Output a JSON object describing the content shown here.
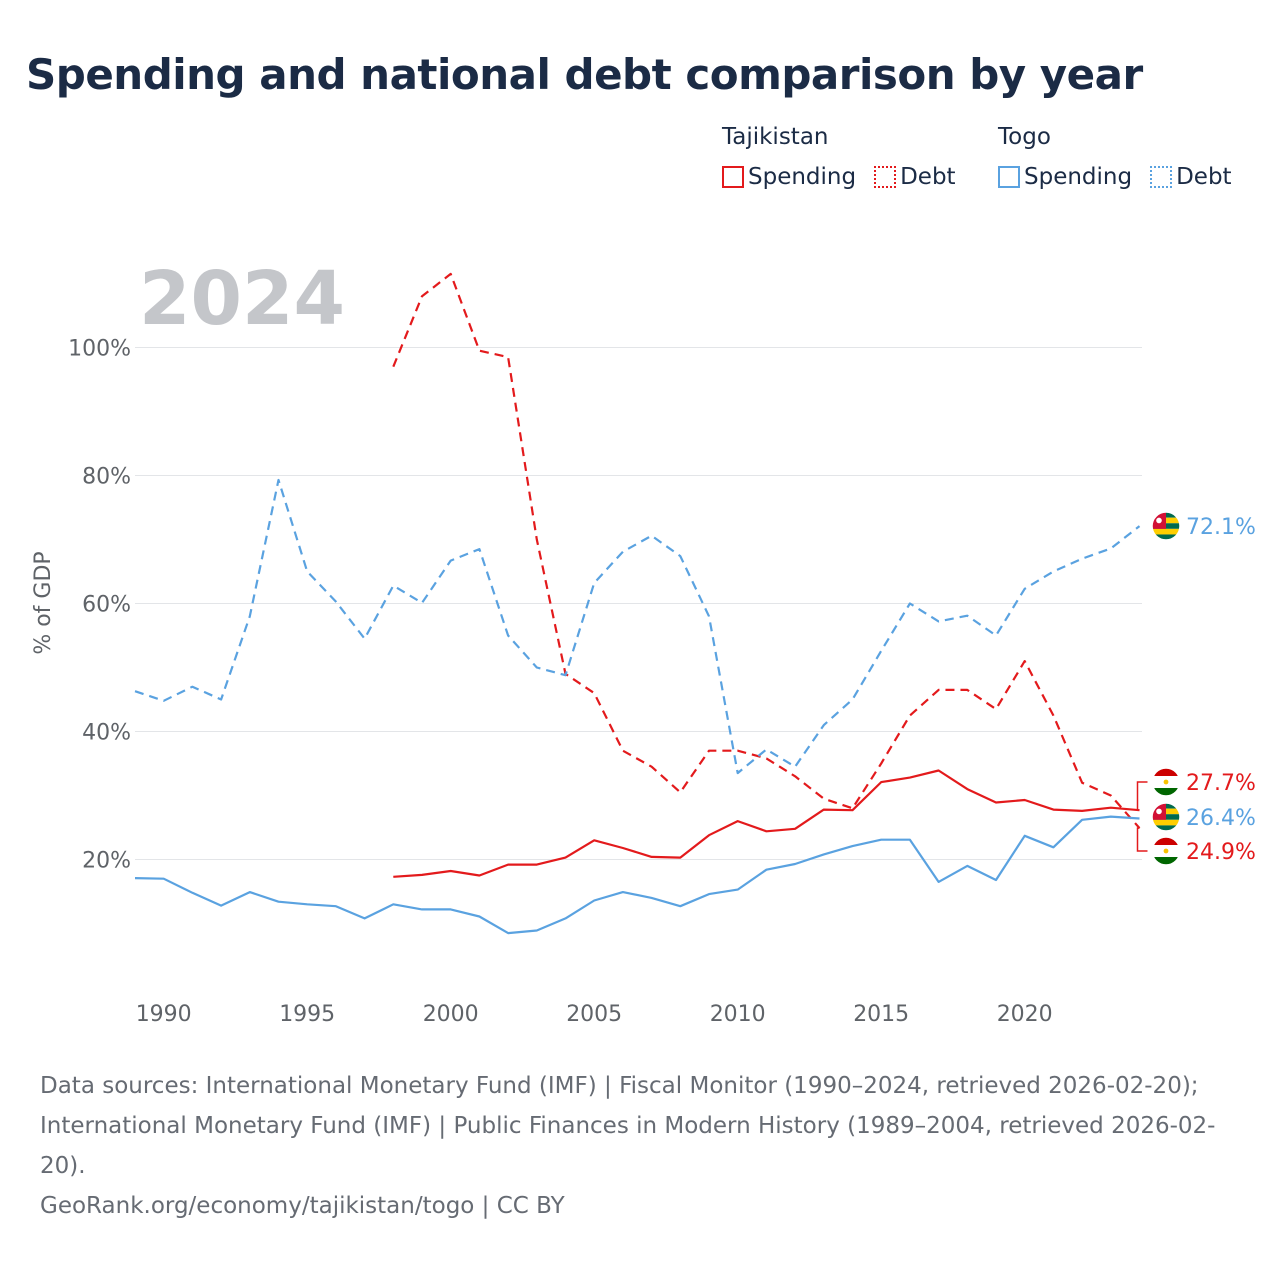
{
  "title": "Spending and national debt comparison by year",
  "legend": {
    "groups": [
      {
        "name": "Tajikistan",
        "items": [
          {
            "label": "Spending",
            "color": "#e31a1c",
            "style": "solid"
          },
          {
            "label": "Debt",
            "color": "#e31a1c",
            "style": "dotted"
          }
        ]
      },
      {
        "name": "Togo",
        "items": [
          {
            "label": "Spending",
            "color": "#5aa2e0",
            "style": "solid"
          },
          {
            "label": "Debt",
            "color": "#5aa2e0",
            "style": "dotted"
          }
        ]
      }
    ]
  },
  "sources": {
    "line1": "Data sources: International Monetary Fund (IMF) | Fiscal Monitor (1990–2024, retrieved 2026-02-20); International Monetary Fund (IMF) | Public Finances in Modern History (1989–2004, retrieved 2026-02-20).",
    "line2": "GeoRank.org/economy/tajikistan/togo | CC BY"
  },
  "chart_data": {
    "type": "line",
    "title": "Spending and national debt comparison by year",
    "year_label": "2024",
    "ylabel": "% of GDP",
    "xlim": [
      1989,
      2024
    ],
    "ylim": [
      0,
      112
    ],
    "yticks": [
      20,
      40,
      60,
      80,
      100
    ],
    "ytick_labels": [
      "20%",
      "40%",
      "60%",
      "80%",
      "100%"
    ],
    "xticks": [
      1990,
      1995,
      2000,
      2005,
      2010,
      2015,
      2020
    ],
    "xtick_labels": [
      "1990",
      "1995",
      "2000",
      "2005",
      "2010",
      "2015",
      "2020"
    ],
    "series": [
      {
        "key": "tj-debt",
        "name": "Tajikistan Debt",
        "color": "#e31a1c",
        "dash": "9,6",
        "x": [
          1998,
          1999,
          2000,
          2001,
          2002,
          2003,
          2004,
          2005,
          2006,
          2007,
          2008,
          2009,
          2010,
          2011,
          2012,
          2013,
          2014,
          2015,
          2016,
          2017,
          2018,
          2019,
          2020,
          2021,
          2022,
          2023,
          2024
        ],
        "y": [
          97,
          108,
          111.5,
          99.5,
          98.5,
          70,
          49,
          46,
          37,
          34.5,
          30.5,
          37,
          37,
          35.8,
          33,
          29.5,
          28,
          35,
          42.5,
          46.5,
          46.5,
          43.5,
          51,
          42.5,
          32,
          30,
          24.9
        ]
      },
      {
        "key": "tj-spending",
        "name": "Tajikistan Spending",
        "color": "#e31a1c",
        "dash": "",
        "x": [
          1998,
          1999,
          2000,
          2001,
          2002,
          2003,
          2004,
          2005,
          2006,
          2007,
          2008,
          2009,
          2010,
          2011,
          2012,
          2013,
          2014,
          2015,
          2016,
          2017,
          2018,
          2019,
          2020,
          2021,
          2022,
          2023,
          2024
        ],
        "y": [
          17.3,
          17.6,
          18.2,
          17.5,
          19.2,
          19.2,
          20.3,
          23,
          21.8,
          20.4,
          20.3,
          23.8,
          26,
          24.4,
          24.8,
          27.8,
          27.7,
          32.1,
          32.8,
          33.9,
          31,
          28.9,
          29.3,
          27.8,
          27.6,
          28.1,
          27.7
        ]
      },
      {
        "key": "tg-debt",
        "name": "Togo Debt",
        "color": "#5aa2e0",
        "dash": "9,6",
        "x": [
          1989,
          1990,
          1991,
          1992,
          1993,
          1994,
          1995,
          1996,
          1997,
          1998,
          1999,
          2000,
          2001,
          2002,
          2003,
          2004,
          2005,
          2006,
          2007,
          2008,
          2009,
          2010,
          2011,
          2012,
          2013,
          2014,
          2015,
          2016,
          2017,
          2018,
          2019,
          2020,
          2021,
          2022,
          2023,
          2024
        ],
        "y": [
          46.3,
          44.8,
          47,
          45,
          58,
          79.3,
          65,
          60.3,
          54.5,
          62.8,
          60.1,
          66.7,
          68.5,
          55,
          50,
          48.8,
          63.2,
          68.1,
          70.6,
          67.4,
          58,
          33.5,
          37.2,
          34.5,
          41,
          45,
          52.6,
          60,
          57.2,
          58.1,
          55,
          62.3,
          65,
          67,
          68.6,
          72.1
        ]
      },
      {
        "key": "tg-spending",
        "name": "Togo Spending",
        "color": "#5aa2e0",
        "dash": "",
        "x": [
          1989,
          1990,
          1991,
          1992,
          1993,
          1994,
          1995,
          1996,
          1997,
          1998,
          1999,
          2000,
          2001,
          2002,
          2003,
          2004,
          2005,
          2006,
          2007,
          2008,
          2009,
          2010,
          2011,
          2012,
          2013,
          2014,
          2015,
          2016,
          2017,
          2018,
          2019,
          2020,
          2021,
          2022,
          2023,
          2024
        ],
        "y": [
          17.1,
          17,
          14.8,
          12.8,
          14.9,
          13.4,
          13,
          12.7,
          10.8,
          13,
          12.2,
          12.2,
          11.1,
          8.5,
          8.9,
          10.8,
          13.6,
          14.9,
          14,
          12.7,
          14.6,
          15.3,
          18.4,
          19.3,
          20.8,
          22.1,
          23.1,
          23.1,
          16.5,
          19,
          16.8,
          23.7,
          21.9,
          26.2,
          26.7,
          26.4
        ]
      }
    ],
    "end_labels": [
      {
        "key": "tg-debt",
        "text": "72.1%",
        "color": "#5aa2e0",
        "value": 72.1,
        "flag": "togo"
      },
      {
        "key": "tj-spending",
        "text": "27.7%",
        "color": "#e31a1c",
        "value": 27.7,
        "flag": "tajikistan"
      },
      {
        "key": "tg-spending",
        "text": "26.4%",
        "color": "#5aa2e0",
        "value": 26.4,
        "flag": "togo"
      },
      {
        "key": "tj-debt",
        "text": "24.9%",
        "color": "#e31a1c",
        "value": 24.9,
        "flag": "tajikistan"
      }
    ]
  }
}
